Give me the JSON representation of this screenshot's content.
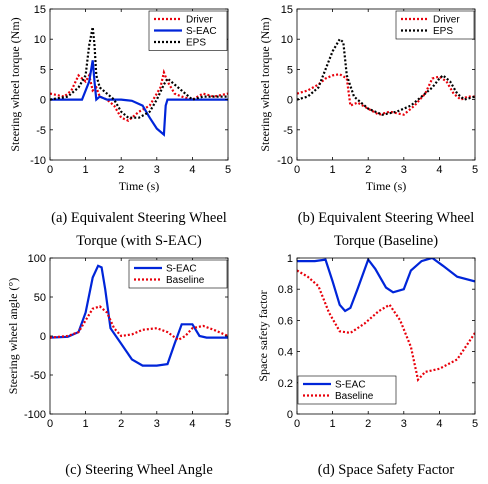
{
  "chart_data": [
    {
      "type": "line",
      "caption": [
        "(a) Equivalent Steering Wheel",
        "Torque (with S-EAC)"
      ],
      "xlabel": "Time (s)",
      "ylabel": "Steering wheel torque (Nm)",
      "xlim": [
        0,
        5
      ],
      "ylim": [
        -10,
        15
      ],
      "xticks": [
        "0",
        "1",
        "2",
        "3",
        "4",
        "5"
      ],
      "yticks": [
        "-10",
        "-5",
        "0",
        "5",
        "10",
        "15"
      ],
      "legend_position": "top-right",
      "series": [
        {
          "name": "Driver",
          "color": "#e8000b",
          "style": "dotted",
          "x": [
            0,
            0.4,
            0.6,
            0.8,
            1.0,
            1.1,
            1.2,
            1.3,
            1.4,
            1.6,
            1.8,
            2.0,
            2.2,
            2.5,
            2.8,
            3.0,
            3.1,
            3.2,
            3.3,
            3.5,
            3.7,
            4.0,
            4.3,
            4.6,
            5.0
          ],
          "y": [
            1.0,
            0.5,
            1.5,
            4.0,
            3.0,
            4.0,
            1.5,
            2.0,
            0.5,
            0.0,
            -1.0,
            -3.0,
            -3.5,
            -2.0,
            -1.0,
            1.0,
            2.0,
            4.5,
            3.0,
            1.0,
            0.5,
            0.0,
            1.0,
            0.5,
            1.0
          ]
        },
        {
          "name": "S-EAC",
          "color": "#0025d9",
          "style": "solid",
          "x": [
            0,
            0.9,
            1.1,
            1.2,
            1.25,
            1.3,
            1.4,
            1.6,
            2.0,
            2.3,
            2.6,
            2.8,
            3.0,
            3.2,
            3.25,
            3.3,
            3.5,
            4.0,
            5.0
          ],
          "y": [
            0,
            0,
            3.0,
            6.5,
            3.0,
            0,
            0.5,
            0,
            0,
            -0.2,
            -1.0,
            -3.0,
            -4.8,
            -5.8,
            -1.0,
            0,
            0,
            0,
            0
          ]
        },
        {
          "name": "EPS",
          "color": "#000000",
          "style": "dotted",
          "x": [
            0,
            0.5,
            0.8,
            1.0,
            1.1,
            1.2,
            1.25,
            1.3,
            1.4,
            1.6,
            1.8,
            2.0,
            2.2,
            2.5,
            2.8,
            3.0,
            3.2,
            3.3,
            3.5,
            3.8,
            4.0,
            4.3,
            4.6,
            5.0
          ],
          "y": [
            0,
            0.5,
            2.0,
            4.0,
            9.0,
            12.0,
            9.0,
            4.0,
            2.0,
            1.0,
            0.0,
            -2.0,
            -3.0,
            -3.0,
            -2.0,
            0.0,
            2.5,
            3.5,
            2.5,
            1.0,
            0.0,
            0.5,
            0.5,
            0.5
          ]
        }
      ]
    },
    {
      "type": "line",
      "caption": [
        "(b) Equivalent Steering Wheel",
        "Torque (Baseline)"
      ],
      "xlabel": "Time (s)",
      "ylabel": "Steering wheel torque (Nm)",
      "xlim": [
        0,
        5
      ],
      "ylim": [
        -10,
        15
      ],
      "xticks": [
        "0",
        "1",
        "2",
        "3",
        "4",
        "5"
      ],
      "yticks": [
        "-10",
        "-5",
        "0",
        "5",
        "10",
        "15"
      ],
      "legend_position": "top-right",
      "series": [
        {
          "name": "Driver",
          "color": "#e8000b",
          "style": "dotted",
          "x": [
            0,
            0.3,
            0.6,
            0.8,
            1.0,
            1.2,
            1.4,
            1.5,
            1.7,
            2.0,
            2.3,
            2.6,
            3.0,
            3.3,
            3.6,
            3.8,
            4.0,
            4.2,
            4.4,
            4.6,
            4.8,
            5.0
          ],
          "y": [
            1.0,
            1.5,
            2.5,
            3.5,
            4.0,
            4.2,
            3.5,
            -1.0,
            -0.5,
            -1.5,
            -2.5,
            -2.0,
            -2.5,
            -1.0,
            1.0,
            3.5,
            3.8,
            3.0,
            1.0,
            0.0,
            0.5,
            0.5
          ]
        },
        {
          "name": "EPS",
          "color": "#000000",
          "style": "dotted",
          "x": [
            0,
            0.3,
            0.6,
            0.8,
            1.0,
            1.1,
            1.2,
            1.3,
            1.4,
            1.6,
            2.0,
            2.4,
            2.8,
            3.2,
            3.5,
            3.8,
            4.0,
            4.1,
            4.3,
            4.5,
            4.7,
            5.0
          ],
          "y": [
            0,
            0.5,
            2.0,
            5.0,
            8.0,
            9.0,
            10.0,
            9.5,
            4.0,
            0.5,
            -1.5,
            -2.5,
            -2.0,
            -1.0,
            0.5,
            2.0,
            3.5,
            4.0,
            3.0,
            1.0,
            0.0,
            0.5
          ]
        }
      ]
    },
    {
      "type": "line",
      "caption": [
        "(c) Steering Wheel Angle"
      ],
      "xlabel": "",
      "ylabel": "Steering wheel angle (°)",
      "xlim": [
        0,
        5
      ],
      "ylim": [
        -100,
        100
      ],
      "xticks": [
        "0",
        "1",
        "2",
        "3",
        "4",
        "5"
      ],
      "yticks": [
        "-100",
        "-50",
        "0",
        "50",
        "100"
      ],
      "legend_position": "top-right",
      "series": [
        {
          "name": "S-EAC",
          "color": "#0025d9",
          "style": "solid",
          "x": [
            0,
            0.5,
            0.8,
            1.0,
            1.2,
            1.35,
            1.45,
            1.55,
            1.7,
            2.0,
            2.3,
            2.6,
            3.0,
            3.3,
            3.5,
            3.7,
            4.0,
            4.2,
            4.4,
            4.6,
            5.0
          ],
          "y": [
            -2,
            -1,
            5,
            30,
            75,
            90,
            88,
            60,
            10,
            -10,
            -30,
            -38,
            -38,
            -36,
            -10,
            15,
            15,
            0,
            -2,
            -2,
            -2
          ]
        },
        {
          "name": "Baseline",
          "color": "#e8000b",
          "style": "dotted",
          "x": [
            0,
            0.5,
            0.8,
            1.0,
            1.2,
            1.4,
            1.6,
            1.8,
            2.0,
            2.3,
            2.6,
            3.0,
            3.3,
            3.6,
            3.8,
            4.0,
            4.3,
            4.6,
            5.0
          ],
          "y": [
            -2,
            0,
            5,
            20,
            35,
            38,
            30,
            10,
            0,
            2,
            8,
            10,
            5,
            -5,
            0,
            10,
            13,
            8,
            0
          ]
        }
      ]
    },
    {
      "type": "line",
      "caption": [
        "(d) Space Safety Factor"
      ],
      "xlabel": "",
      "ylabel": "Space safety factor",
      "xlim": [
        0,
        5
      ],
      "ylim": [
        0,
        1
      ],
      "xticks": [
        "0",
        "1",
        "2",
        "3",
        "4",
        "5"
      ],
      "yticks": [
        "0",
        "0.2",
        "0.4",
        "0.6",
        "0.8",
        "1"
      ],
      "legend_position": "bottom-left",
      "series": [
        {
          "name": "S-EAC",
          "color": "#0025d9",
          "style": "solid",
          "x": [
            0,
            0.5,
            0.8,
            1.0,
            1.2,
            1.35,
            1.5,
            1.7,
            2.0,
            2.2,
            2.5,
            2.7,
            3.0,
            3.2,
            3.5,
            3.8,
            4.1,
            4.5,
            5.0
          ],
          "y": [
            0.98,
            0.98,
            0.99,
            0.85,
            0.7,
            0.66,
            0.68,
            0.8,
            0.99,
            0.93,
            0.81,
            0.78,
            0.8,
            0.92,
            0.98,
            1.0,
            0.95,
            0.88,
            0.85
          ]
        },
        {
          "name": "Baseline",
          "color": "#e8000b",
          "style": "dotted",
          "x": [
            0,
            0.3,
            0.6,
            0.9,
            1.2,
            1.5,
            1.9,
            2.3,
            2.6,
            2.9,
            3.2,
            3.4,
            3.6,
            4.0,
            4.5,
            5.0
          ],
          "y": [
            0.92,
            0.88,
            0.82,
            0.65,
            0.53,
            0.52,
            0.58,
            0.66,
            0.7,
            0.6,
            0.43,
            0.22,
            0.27,
            0.29,
            0.35,
            0.52
          ]
        }
      ]
    }
  ]
}
